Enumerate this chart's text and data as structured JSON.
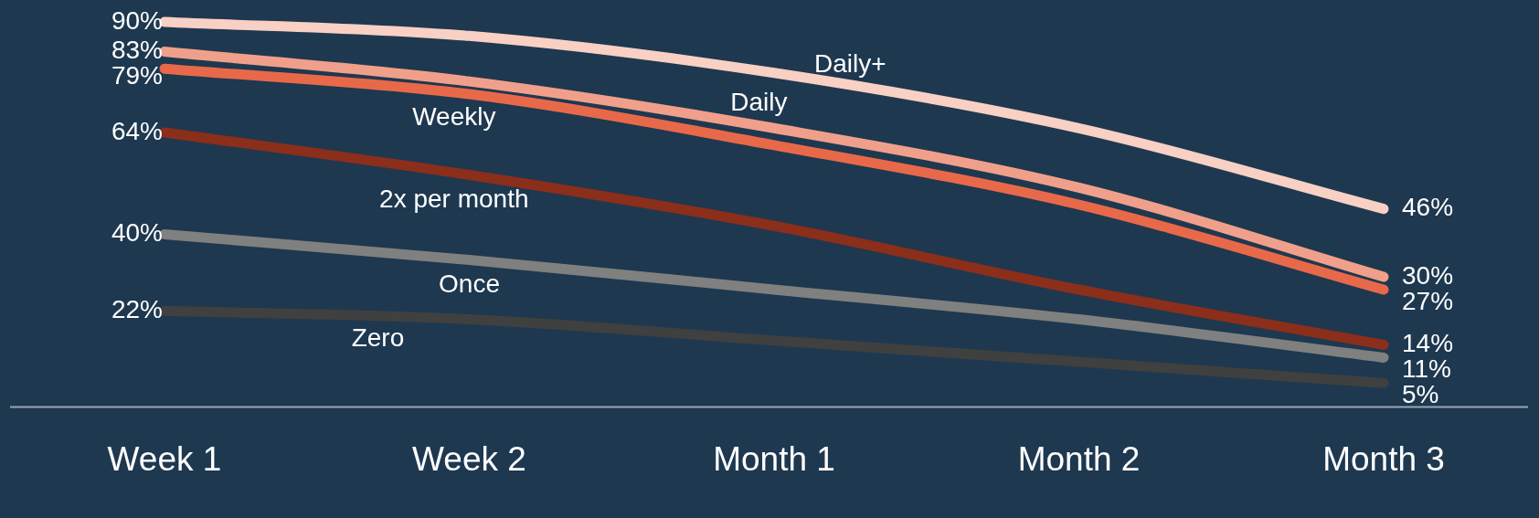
{
  "chart_data": {
    "type": "line",
    "categories": [
      "Week 1",
      "Week 2",
      "Month 1",
      "Month 2",
      "Month 3"
    ],
    "tick_labels": "x",
    "grid": false,
    "legend": false,
    "marker": "none",
    "line_style": "solid",
    "series": [
      {
        "name": "Daily+",
        "color": "#f8d0c4",
        "values": [
          90,
          86.7,
          78,
          65,
          46
        ],
        "value_labels": [
          "90%",
          null,
          null,
          null,
          "46%"
        ]
      },
      {
        "name": "Daily",
        "color": "#f0a08a",
        "values": [
          83,
          76,
          65,
          51,
          30
        ],
        "value_labels": [
          "83%",
          null,
          null,
          null,
          "30%"
        ]
      },
      {
        "name": "Weekly",
        "color": "#e8694a",
        "values": [
          79,
          73,
          61,
          47,
          27
        ],
        "value_labels": [
          "79%",
          null,
          null,
          null,
          "27%"
        ]
      },
      {
        "name": "2x per month",
        "color": "#8b2e1a",
        "values": [
          64,
          54,
          42,
          27,
          14
        ],
        "value_labels": [
          "64%",
          null,
          null,
          null,
          "14%"
        ]
      },
      {
        "name": "Once",
        "color": "#808080",
        "values": [
          40,
          34,
          27,
          20,
          11
        ],
        "value_labels": [
          "40%",
          null,
          null,
          null,
          "11%"
        ]
      },
      {
        "name": "Zero",
        "color": "#404040",
        "values": [
          22,
          20,
          15,
          10,
          5
        ],
        "value_labels": [
          "22%",
          null,
          null,
          null,
          "5%"
        ]
      }
    ]
  }
}
